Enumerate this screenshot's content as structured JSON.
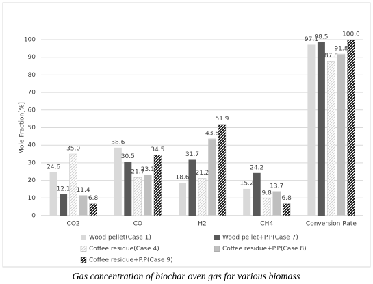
{
  "chart_data": {
    "type": "bar",
    "title": "Gas concentration of biochar oven gas for various biomass",
    "y_label": "Mole Fraction[%]",
    "categories": [
      "CO2",
      "CO",
      "H2",
      "CH4",
      "Conversion Rate"
    ],
    "ylim": [
      0,
      100
    ],
    "yticks": [
      0,
      10,
      20,
      30,
      40,
      50,
      60,
      70,
      80,
      90,
      100
    ],
    "grid": true,
    "series": [
      {
        "name": "Wood pellet(Case 1)",
        "color": "#d9d9d9",
        "pattern": "solid",
        "values": [
          24.6,
          38.6,
          18.6,
          15.2,
          97.1
        ],
        "value_labels": [
          "24.6",
          "38.6",
          "18.6",
          "15.2",
          "97.1"
        ]
      },
      {
        "name": "Wood pellet+P.P(Case 7)",
        "color": "#595959",
        "pattern": "solid",
        "values": [
          12.1,
          30.5,
          31.7,
          24.2,
          98.5
        ],
        "value_labels": [
          "12.1",
          "30.5",
          "31.7",
          "24.2",
          "98.5"
        ]
      },
      {
        "name": "Coffee residue(Case 4)",
        "color": "#d0d0d0",
        "pattern": "diagonal",
        "values": [
          35.0,
          21.7,
          21.2,
          9.8,
          87.8
        ],
        "value_labels": [
          "35.0",
          "21.7",
          "21.2",
          "9.8",
          "87.8"
        ]
      },
      {
        "name": "Coffee residue+P.P(Case 8)",
        "color": "#7f7f7f",
        "pattern": "horizontal",
        "values": [
          11.4,
          23.1,
          43.6,
          13.7,
          91.8
        ],
        "value_labels": [
          "11.4",
          "23.1",
          "43.6",
          "13.7",
          "91.8"
        ]
      },
      {
        "name": "Coffee residue+P.P(Case 9)",
        "color": "#000000",
        "pattern": "hatch",
        "values": [
          6.8,
          34.5,
          51.9,
          6.8,
          100.0
        ],
        "value_labels": [
          "6.8",
          "34.5",
          "51.9",
          "6.8",
          "100.0"
        ]
      }
    ]
  }
}
